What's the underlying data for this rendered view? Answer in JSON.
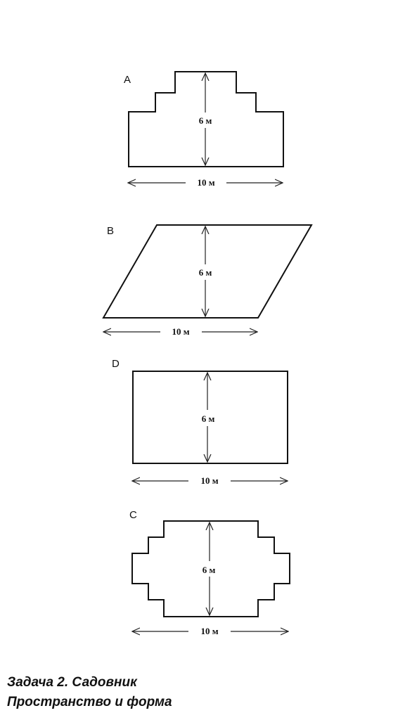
{
  "figures": [
    {
      "id": "A",
      "label": "A",
      "height_label": "6 м",
      "width_label": "10 м"
    },
    {
      "id": "B",
      "label": "B",
      "height_label": "6 м",
      "width_label": "10 м"
    },
    {
      "id": "D",
      "label": "D",
      "height_label": "6 м",
      "width_label": "10 м"
    },
    {
      "id": "C",
      "label": "C",
      "height_label": "6 м",
      "width_label": "10 м"
    }
  ],
  "caption": {
    "line1": "Задача 2. Садовник",
    "line2": "Пространство и форма"
  }
}
